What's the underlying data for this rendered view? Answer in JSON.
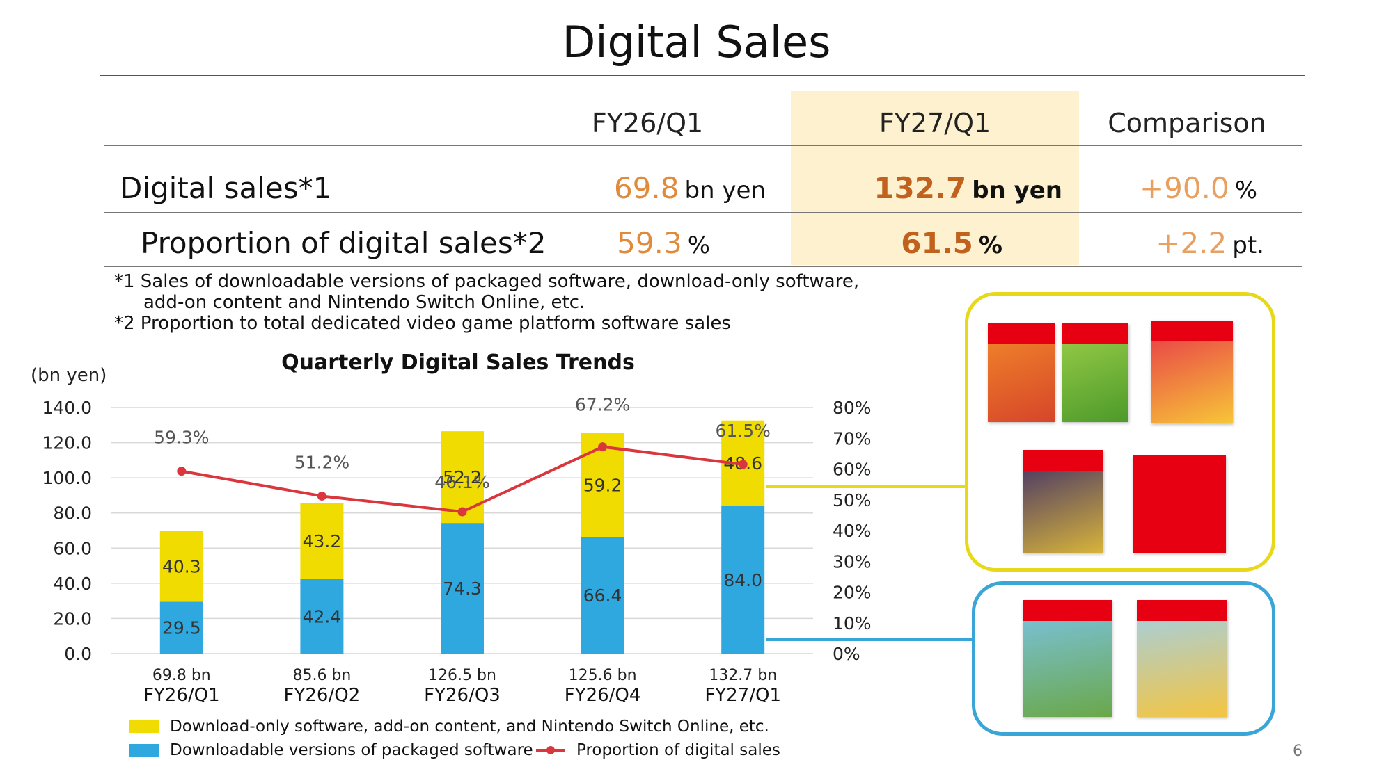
{
  "title": "Digital Sales",
  "table": {
    "headers": [
      "FY26/Q1",
      "FY27/Q1",
      "Comparison"
    ],
    "rows": [
      {
        "label": "Digital sales*1",
        "fy26": {
          "value": "69.8",
          "unit": "bn yen"
        },
        "fy27": {
          "value": "132.7",
          "unit": "bn yen"
        },
        "comparison": {
          "value": "+90.0",
          "unit": "%"
        }
      },
      {
        "label": "Proportion of digital sales*2",
        "fy26": {
          "value": "59.3",
          "unit": "%"
        },
        "fy27": {
          "value": "61.5",
          "unit": "%"
        },
        "comparison": {
          "value": "+2.2",
          "unit": "pt."
        }
      }
    ]
  },
  "notes": [
    "*1 Sales of downloadable versions of packaged software, download-only software,",
    "add-on content and Nintendo Switch Online, etc.",
    "*2 Proportion to total dedicated video game platform software sales"
  ],
  "chart_data": {
    "type": "bar",
    "title": "Quarterly Digital Sales Trends",
    "ylabel": "(bn yen)",
    "ylim": [
      0,
      140
    ],
    "y_ticks": [
      "0.0",
      "20.0",
      "40.0",
      "60.0",
      "80.0",
      "100.0",
      "120.0",
      "140.0"
    ],
    "y2lim": [
      0,
      80
    ],
    "y2_ticks": [
      "0%",
      "10%",
      "20%",
      "30%",
      "40%",
      "50%",
      "60%",
      "70%",
      "80%"
    ],
    "categories": [
      "FY26/Q1",
      "FY26/Q2",
      "FY26/Q3",
      "FY26/Q4",
      "FY27/Q1"
    ],
    "totals": [
      "69.8 bn",
      "85.6 bn",
      "126.5 bn",
      "125.6 bn",
      "132.7 bn"
    ],
    "series": [
      {
        "name": "Downloadable versions of packaged software",
        "kind": "stacked-bar",
        "color": "#2fa8e0",
        "values": [
          29.5,
          42.4,
          74.3,
          66.4,
          84.0
        ],
        "labels": [
          "29.5",
          "42.4",
          "74.3",
          "66.4",
          "84.0"
        ]
      },
      {
        "name": "Download-only software, add-on content, and Nintendo Switch Online, etc.",
        "kind": "stacked-bar",
        "color": "#f0dc00",
        "values": [
          40.3,
          43.2,
          52.2,
          59.2,
          48.6
        ],
        "labels": [
          "40.3",
          "43.2",
          "52.2",
          "59.2",
          "48.6"
        ]
      },
      {
        "name": "Proportion of digital sales",
        "kind": "line",
        "axis": "right",
        "color": "#d9363e",
        "values": [
          59.3,
          51.2,
          46.1,
          67.2,
          61.5
        ],
        "labels": [
          "59.3%",
          "51.2%",
          "46.1%",
          "67.2%",
          "61.5%"
        ]
      }
    ],
    "grid": true
  },
  "legend": [
    {
      "label": "Download-only software, add-on content, and Nintendo Switch Online, etc.",
      "color": "#f0dc00"
    },
    {
      "label": "Downloadable versions of packaged software",
      "color": "#2fa8e0"
    },
    {
      "label": "Proportion of digital sales",
      "color": "#d9363e"
    }
  ],
  "colors": {
    "yellow_box": "#e8d81a",
    "blue_box": "#3aa6d8",
    "highlight": "#fdf1cf"
  },
  "page_number": "6"
}
